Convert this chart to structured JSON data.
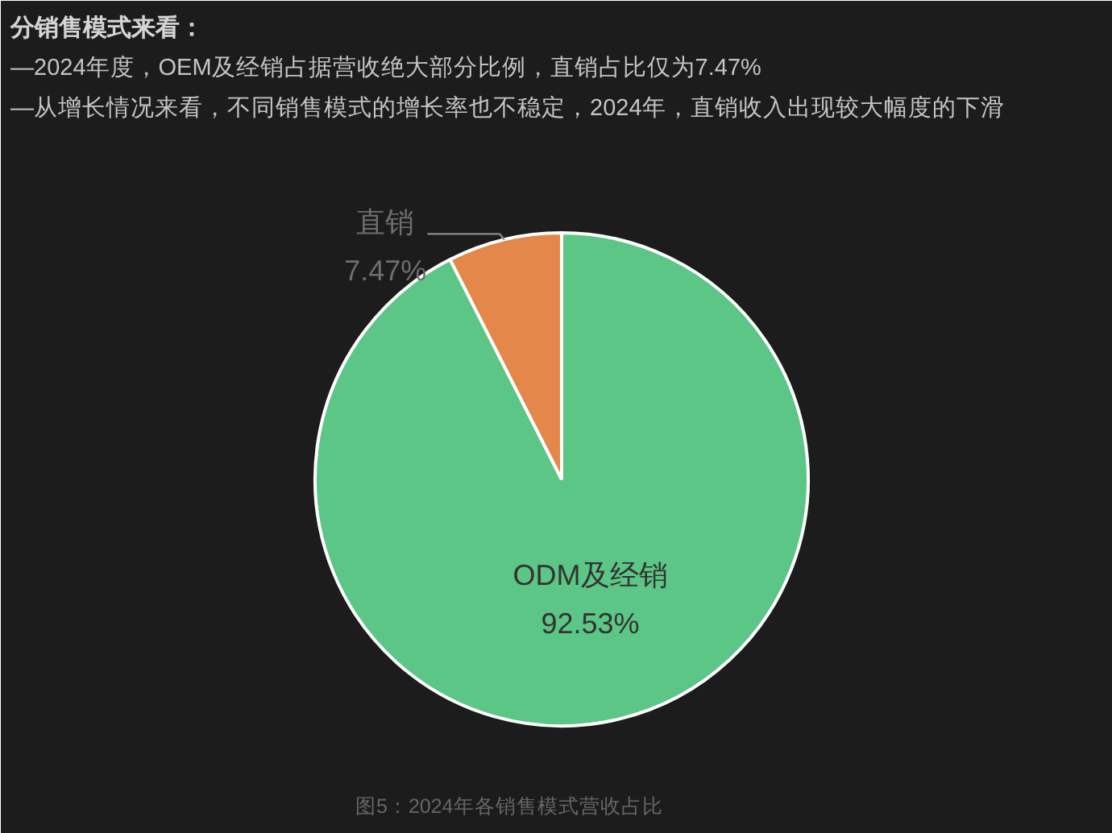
{
  "chart_data": {
    "type": "pie",
    "title": "分销售模式来看：",
    "subtitle": "—2024年度，OEM及经销占据营收绝大部分比例，直销占比仅为7.47%\n—从增长情况来看，不同销售模式的增长率也不稳定，2024年，直销收入出现较大幅度的下滑",
    "categories": [
      "ODM及经销",
      "直销"
    ],
    "values": [
      92.53,
      7.47
    ],
    "colors": [
      "#5cc686",
      "#e3874a"
    ],
    "value_labels": [
      "92.53%",
      "7.47%"
    ],
    "annotations": [
      "图5：2024年各销售模式营收占比"
    ]
  }
}
